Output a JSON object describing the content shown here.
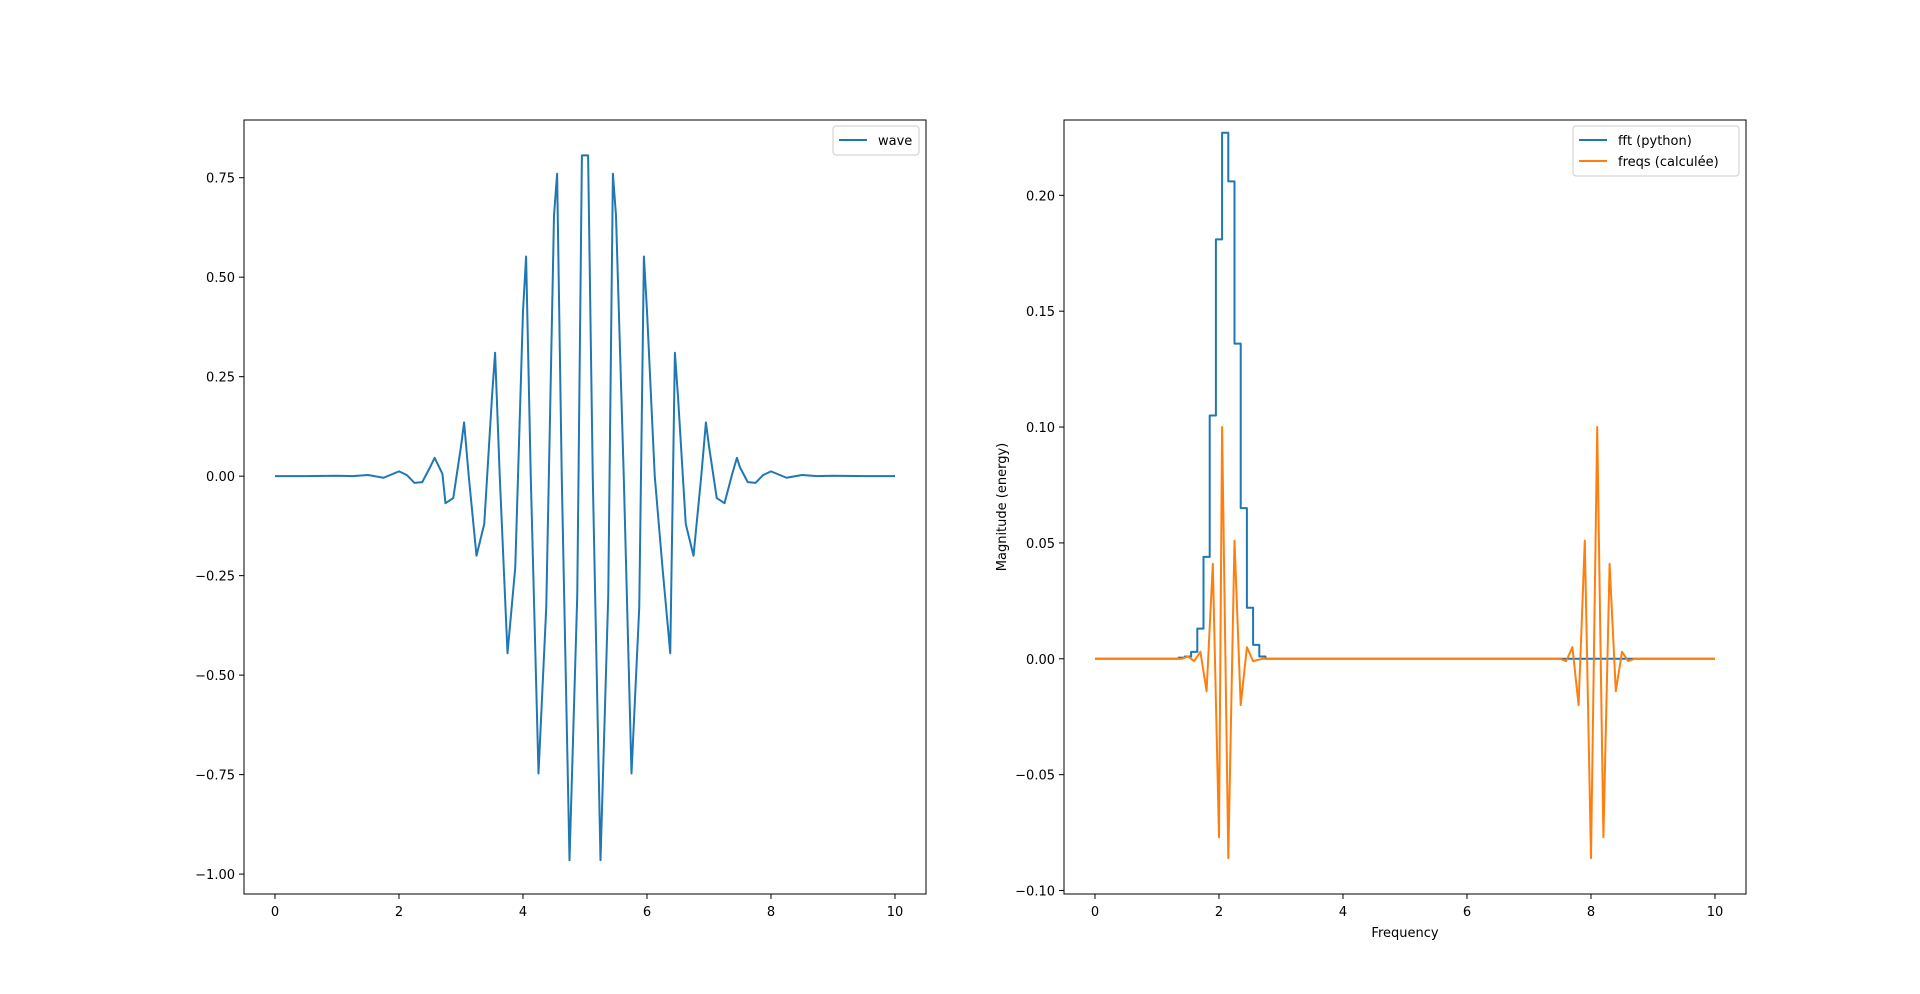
{
  "chart_data": [
    {
      "type": "line",
      "title": "",
      "xlabel": "",
      "ylabel": "",
      "xlim": [
        -0.5,
        10.5
      ],
      "ylim": [
        -1.05,
        0.895
      ],
      "xticks": [
        0,
        2,
        4,
        6,
        8,
        10
      ],
      "xtick_labels": [
        "0",
        "2",
        "4",
        "6",
        "8",
        "10"
      ],
      "yticks": [
        0.75,
        0.5,
        0.25,
        0.0,
        -0.25,
        -0.5,
        -0.75,
        -1.0
      ],
      "ytick_labels": [
        "0.75",
        "0.50",
        "0.25",
        "0.00",
        "−0.25",
        "−0.50",
        "−0.75",
        "−1.00"
      ],
      "grid": false,
      "legend": "top-right",
      "series": [
        {
          "name": "wave",
          "color": "#1f77b4",
          "step": false,
          "points": [
            [
              0.0,
              0.0
            ],
            [
              0.5,
              0.0
            ],
            [
              1.0,
              0.001
            ],
            [
              1.25,
              0.0
            ],
            [
              1.5,
              0.003
            ],
            [
              1.75,
              -0.004
            ],
            [
              2.0,
              0.012
            ],
            [
              2.125,
              0.003
            ],
            [
              2.25,
              -0.017
            ],
            [
              2.375,
              -0.015
            ],
            [
              2.5,
              0.022
            ],
            [
              2.575,
              0.046
            ],
            [
              2.7,
              0.006
            ],
            [
              2.75,
              -0.068
            ],
            [
              2.875,
              -0.055
            ],
            [
              3.0,
              0.075
            ],
            [
              3.05,
              0.135
            ],
            [
              3.125,
              0.0
            ],
            [
              3.25,
              -0.2
            ],
            [
              3.375,
              -0.12
            ],
            [
              3.5,
              0.2
            ],
            [
              3.55,
              0.31
            ],
            [
              3.625,
              0.0
            ],
            [
              3.75,
              -0.445
            ],
            [
              3.875,
              -0.23
            ],
            [
              4.0,
              0.415
            ],
            [
              4.05,
              0.552
            ],
            [
              4.125,
              0.0
            ],
            [
              4.25,
              -0.747
            ],
            [
              4.375,
              -0.33
            ],
            [
              4.5,
              0.655
            ],
            [
              4.55,
              0.76
            ],
            [
              4.625,
              0.0
            ],
            [
              4.75,
              -0.965
            ],
            [
              4.875,
              -0.3
            ],
            [
              4.95,
              0.806
            ],
            [
              5.05,
              0.806
            ],
            [
              5.125,
              0.0
            ],
            [
              5.25,
              -0.965
            ],
            [
              5.375,
              -0.3
            ],
            [
              5.45,
              0.76
            ],
            [
              5.5,
              0.655
            ],
            [
              5.625,
              0.0
            ],
            [
              5.75,
              -0.747
            ],
            [
              5.875,
              -0.33
            ],
            [
              5.95,
              0.552
            ],
            [
              6.0,
              0.415
            ],
            [
              6.125,
              0.0
            ],
            [
              6.25,
              -0.23
            ],
            [
              6.375,
              -0.445
            ],
            [
              6.45,
              0.31
            ],
            [
              6.5,
              0.2
            ],
            [
              6.625,
              -0.12
            ],
            [
              6.75,
              -0.2
            ],
            [
              6.875,
              0.0
            ],
            [
              6.95,
              0.135
            ],
            [
              7.0,
              0.075
            ],
            [
              7.125,
              -0.055
            ],
            [
              7.25,
              -0.068
            ],
            [
              7.375,
              0.006
            ],
            [
              7.45,
              0.046
            ],
            [
              7.5,
              0.022
            ],
            [
              7.625,
              -0.015
            ],
            [
              7.75,
              -0.017
            ],
            [
              7.875,
              0.003
            ],
            [
              8.0,
              0.012
            ],
            [
              8.25,
              -0.004
            ],
            [
              8.5,
              0.003
            ],
            [
              8.75,
              0.0
            ],
            [
              9.0,
              0.001
            ],
            [
              9.5,
              0.0
            ],
            [
              10.0,
              0.0
            ]
          ]
        }
      ]
    },
    {
      "type": "line",
      "title": "",
      "xlabel": "Frequency",
      "ylabel": "Magnitude (energy)",
      "xlim": [
        -0.5,
        10.5
      ],
      "ylim": [
        -0.1015,
        0.2325
      ],
      "xticks": [
        0,
        2,
        4,
        6,
        8,
        10
      ],
      "xtick_labels": [
        "0",
        "2",
        "4",
        "6",
        "8",
        "10"
      ],
      "yticks": [
        0.2,
        0.15,
        0.1,
        0.05,
        0.0,
        -0.05,
        -0.1
      ],
      "ytick_labels": [
        "0.20",
        "0.15",
        "0.10",
        "0.05",
        "0.00",
        "−0.05",
        "−0.10"
      ],
      "grid": false,
      "legend": "top-right",
      "series": [
        {
          "name": "fft (python)",
          "color": "#1f77b4",
          "step": true,
          "points": [
            [
              0.0,
              0.0
            ],
            [
              1.25,
              0.0
            ],
            [
              1.35,
              0.0005
            ],
            [
              1.45,
              0.001
            ],
            [
              1.55,
              0.003
            ],
            [
              1.65,
              0.013
            ],
            [
              1.75,
              0.044
            ],
            [
              1.85,
              0.105
            ],
            [
              1.95,
              0.181
            ],
            [
              2.05,
              0.227
            ],
            [
              2.15,
              0.206
            ],
            [
              2.25,
              0.136
            ],
            [
              2.35,
              0.065
            ],
            [
              2.45,
              0.022
            ],
            [
              2.55,
              0.006
            ],
            [
              2.65,
              0.001
            ],
            [
              2.75,
              0.0
            ],
            [
              10.0,
              0.0
            ]
          ]
        },
        {
          "name": "freqs (calculée)",
          "color": "#ff7f0e",
          "step": false,
          "points": [
            [
              0.0,
              0.0
            ],
            [
              1.4,
              0.0
            ],
            [
              1.5,
              0.001
            ],
            [
              1.6,
              -0.001
            ],
            [
              1.7,
              0.003
            ],
            [
              1.8,
              -0.014
            ],
            [
              1.9,
              0.041
            ],
            [
              2.0,
              -0.077
            ],
            [
              2.05,
              0.1
            ],
            [
              2.15,
              -0.086
            ],
            [
              2.25,
              0.051
            ],
            [
              2.35,
              -0.02
            ],
            [
              2.45,
              0.005
            ],
            [
              2.55,
              -0.001
            ],
            [
              2.7,
              0.0
            ],
            [
              7.5,
              0.0
            ],
            [
              7.6,
              -0.001
            ],
            [
              7.7,
              0.005
            ],
            [
              7.8,
              -0.02
            ],
            [
              7.9,
              0.051
            ],
            [
              8.0,
              -0.086
            ],
            [
              8.1,
              0.1
            ],
            [
              8.2,
              -0.077
            ],
            [
              8.3,
              0.041
            ],
            [
              8.4,
              -0.014
            ],
            [
              8.5,
              0.003
            ],
            [
              8.6,
              -0.001
            ],
            [
              8.7,
              0.0
            ],
            [
              10.0,
              0.0
            ]
          ]
        }
      ]
    }
  ]
}
